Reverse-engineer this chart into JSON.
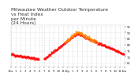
{
  "title": "Milwaukee Weather Outdoor Temperature\nvs Heat Index\nper Minute\n(24 Hours)",
  "title_fontsize": 4.2,
  "title_color": "#333333",
  "bg_color": "#ffffff",
  "plot_bg_color": "#ffffff",
  "grid_color": "#aaaaaa",
  "tick_color": "#333333",
  "tick_fontsize": 2.8,
  "red_color": "#ff0000",
  "orange_color": "#ff8800",
  "ylim": [
    62,
    96
  ],
  "xlim": [
    0,
    1440
  ],
  "y_ticks": [
    65,
    70,
    75,
    80,
    85,
    90,
    95
  ],
  "x_ticks": [
    0,
    60,
    120,
    180,
    240,
    300,
    360,
    420,
    480,
    540,
    600,
    660,
    720,
    780,
    840,
    900,
    960,
    1020,
    1080,
    1140,
    1200,
    1260,
    1320,
    1380,
    1440
  ],
  "x_tick_labels": [
    "12a",
    "1",
    "2",
    "3",
    "4",
    "5",
    "6",
    "7",
    "8",
    "9",
    "10",
    "11",
    "12p",
    "1",
    "2",
    "3",
    "4",
    "5",
    "6",
    "7",
    "8",
    "9",
    "10",
    "11",
    "12a"
  ],
  "gap_start": 360,
  "gap_end": 420,
  "temp_start": 72,
  "temp_dip": 68,
  "temp_peak": 89,
  "temp_end": 72
}
